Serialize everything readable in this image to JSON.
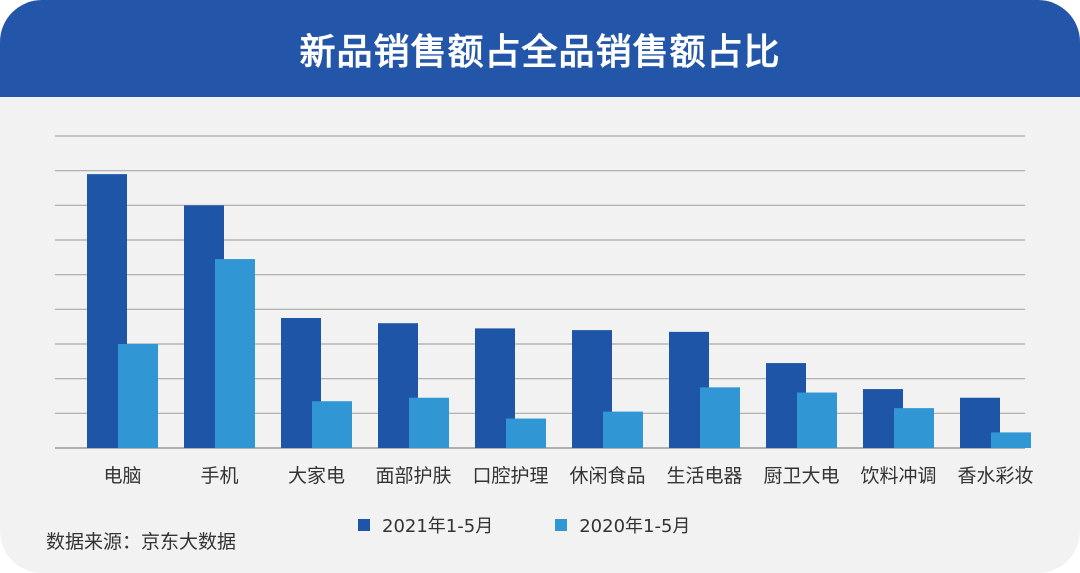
{
  "header": {
    "title": "新品销售额占全品销售额占比"
  },
  "source": "数据来源：京东大数据",
  "chart_data": {
    "type": "bar",
    "title": "新品销售额占全品销售额占比",
    "categories": [
      "电脑",
      "手机",
      "大家电",
      "面部护肤",
      "口腔护理",
      "休闲食品",
      "生活电器",
      "厨卫大电",
      "饮料冲调",
      "香水彩妆"
    ],
    "series": [
      {
        "name": "2021年1-5月",
        "color": "#1f55a6",
        "values": [
          7.9,
          7.0,
          3.75,
          3.6,
          3.45,
          3.4,
          3.35,
          2.45,
          1.7,
          1.45
        ]
      },
      {
        "name": "2020年1-5月",
        "color": "#3197d4",
        "values": [
          3.0,
          5.45,
          1.35,
          1.45,
          0.85,
          1.05,
          1.75,
          1.6,
          1.15,
          0.45
        ]
      }
    ],
    "ylim": [
      0,
      9
    ],
    "ytick_step": 1,
    "grid": true,
    "legend_position": "bottom"
  }
}
